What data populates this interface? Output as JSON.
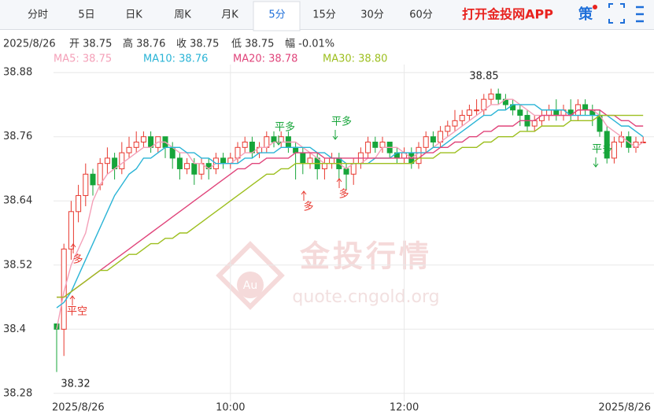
{
  "tabs": [
    "分时",
    "5日",
    "日K",
    "周K",
    "月K",
    "5分",
    "15分",
    "30分",
    "60分"
  ],
  "active_tab": 5,
  "brand": "打开金投网APP",
  "strategy_button": "策",
  "info": [
    "2025/8/26",
    "开 38.75",
    "高 38.76",
    "收 38.75",
    "低 38.75",
    "幅 -0.01%"
  ],
  "watermark": {
    "logo": "Au",
    "title": "金投行情",
    "url": "quote.cngold.org"
  },
  "chart_data": {
    "type": "candlestick",
    "categories": [
      "2025/8/26",
      null,
      null,
      null,
      null,
      null,
      null,
      null,
      null,
      null,
      null,
      null,
      null,
      null,
      null,
      null,
      null,
      null,
      null,
      null,
      null,
      null,
      null,
      null,
      "10:00",
      null,
      null,
      null,
      null,
      null,
      null,
      null,
      null,
      null,
      null,
      null,
      null,
      null,
      null,
      null,
      null,
      null,
      null,
      null,
      null,
      null,
      null,
      null,
      "12:00",
      null,
      null,
      null,
      null,
      null,
      null,
      null,
      null,
      null,
      null,
      null,
      null,
      null,
      null,
      null,
      null,
      null,
      null,
      null,
      null,
      null,
      null,
      null,
      null,
      null,
      null,
      null,
      null,
      null,
      null,
      null,
      null,
      "2025/8/26"
    ],
    "open": [
      38.41,
      38.4,
      38.55,
      38.62,
      38.65,
      38.69,
      38.67,
      38.71,
      38.72,
      38.7,
      38.73,
      38.74,
      38.75,
      38.76,
      38.74,
      38.76,
      38.74,
      38.72,
      38.7,
      38.71,
      38.69,
      38.71,
      38.7,
      38.72,
      38.71,
      38.72,
      38.74,
      38.75,
      38.73,
      38.74,
      38.76,
      38.75,
      38.76,
      38.74,
      38.73,
      38.71,
      38.72,
      38.7,
      38.71,
      38.72,
      38.7,
      38.69,
      38.71,
      38.73,
      38.75,
      38.74,
      38.75,
      38.73,
      38.72,
      38.73,
      38.71,
      38.74,
      38.76,
      38.75,
      38.77,
      38.78,
      38.79,
      38.8,
      38.81,
      38.81,
      38.83,
      38.84,
      38.83,
      38.82,
      38.81,
      38.8,
      38.78,
      38.79,
      38.8,
      38.81,
      38.8,
      38.81,
      38.8,
      38.82,
      38.81,
      38.8,
      38.77,
      38.72,
      38.75,
      38.76,
      38.74,
      38.75
    ],
    "high": [
      38.41,
      38.56,
      38.64,
      38.67,
      38.71,
      38.7,
      38.72,
      38.74,
      38.73,
      38.75,
      38.76,
      38.77,
      38.77,
      38.77,
      38.76,
      38.76,
      38.75,
      38.73,
      38.72,
      38.72,
      38.72,
      38.72,
      38.73,
      38.73,
      38.73,
      38.75,
      38.76,
      38.76,
      38.75,
      38.77,
      38.77,
      38.77,
      38.77,
      38.75,
      38.74,
      38.73,
      38.73,
      38.72,
      38.73,
      38.73,
      38.71,
      38.72,
      38.74,
      38.76,
      38.76,
      38.76,
      38.75,
      38.74,
      38.74,
      38.74,
      38.75,
      38.77,
      38.77,
      38.78,
      38.79,
      38.81,
      38.81,
      38.82,
      38.83,
      38.84,
      38.85,
      38.85,
      38.84,
      38.83,
      38.82,
      38.81,
      38.8,
      38.81,
      38.82,
      38.83,
      38.82,
      38.83,
      38.83,
      38.83,
      38.82,
      38.81,
      38.78,
      38.76,
      38.77,
      38.77,
      38.76,
      38.76
    ],
    "low": [
      38.32,
      38.35,
      38.53,
      38.6,
      38.63,
      38.65,
      38.66,
      38.69,
      38.68,
      38.69,
      38.72,
      38.73,
      38.74,
      38.73,
      38.73,
      38.72,
      38.7,
      38.68,
      38.69,
      38.67,
      38.68,
      38.68,
      38.69,
      38.7,
      38.7,
      38.71,
      38.73,
      38.72,
      38.72,
      38.73,
      38.74,
      38.74,
      38.73,
      38.68,
      38.69,
      38.7,
      38.68,
      38.68,
      38.7,
      38.68,
      38.66,
      38.67,
      38.7,
      38.72,
      38.73,
      38.73,
      38.72,
      38.71,
      38.71,
      38.7,
      38.7,
      38.73,
      38.74,
      38.74,
      38.76,
      38.77,
      38.78,
      38.79,
      38.8,
      38.8,
      38.82,
      38.82,
      38.81,
      38.8,
      38.78,
      38.77,
      38.77,
      38.78,
      38.79,
      38.79,
      38.79,
      38.79,
      38.79,
      38.8,
      38.78,
      38.76,
      38.71,
      38.71,
      38.74,
      38.73,
      38.73,
      38.75
    ],
    "close": [
      38.4,
      38.55,
      38.62,
      38.65,
      38.69,
      38.67,
      38.71,
      38.72,
      38.7,
      38.73,
      38.74,
      38.75,
      38.76,
      38.74,
      38.76,
      38.74,
      38.72,
      38.7,
      38.71,
      38.69,
      38.71,
      38.7,
      38.72,
      38.71,
      38.72,
      38.74,
      38.75,
      38.73,
      38.74,
      38.76,
      38.75,
      38.76,
      38.74,
      38.73,
      38.71,
      38.72,
      38.7,
      38.71,
      38.72,
      38.7,
      38.69,
      38.71,
      38.73,
      38.75,
      38.74,
      38.75,
      38.73,
      38.72,
      38.73,
      38.71,
      38.74,
      38.76,
      38.75,
      38.77,
      38.78,
      38.79,
      38.8,
      38.81,
      38.81,
      38.83,
      38.84,
      38.83,
      38.82,
      38.81,
      38.8,
      38.78,
      38.79,
      38.8,
      38.81,
      38.8,
      38.81,
      38.8,
      38.82,
      38.81,
      38.8,
      38.77,
      38.72,
      38.75,
      38.76,
      38.74,
      38.75,
      38.75
    ],
    "up_color": "#e8382f",
    "down_color": "#17a53a",
    "series": [
      {
        "name": "MA5: 38.75",
        "color": "#f4a0b8",
        "values": [
          38.4,
          38.47,
          38.52,
          38.55,
          38.58,
          38.64,
          38.67,
          38.69,
          38.7,
          38.71,
          38.72,
          38.73,
          38.74,
          38.74,
          38.75,
          38.75,
          38.74,
          38.73,
          38.73,
          38.71,
          38.71,
          38.7,
          38.71,
          38.71,
          38.71,
          38.72,
          38.73,
          38.73,
          38.74,
          38.74,
          38.75,
          38.75,
          38.75,
          38.75,
          38.74,
          38.73,
          38.72,
          38.71,
          38.71,
          38.71,
          38.7,
          38.71,
          38.71,
          38.72,
          38.72,
          38.74,
          38.74,
          38.74,
          38.73,
          38.72,
          38.73,
          38.73,
          38.74,
          38.75,
          38.76,
          38.77,
          38.78,
          38.79,
          38.8,
          38.81,
          38.82,
          38.82,
          38.83,
          38.83,
          38.82,
          38.81,
          38.8,
          38.8,
          38.8,
          38.8,
          38.8,
          38.8,
          38.81,
          38.81,
          38.81,
          38.8,
          38.78,
          38.77,
          38.76,
          38.75,
          38.74,
          38.75
        ]
      },
      {
        "name": "MA10: 38.76",
        "color": "#2ab4d6",
        "values": [
          38.44,
          38.45,
          38.47,
          38.5,
          38.53,
          38.56,
          38.59,
          38.62,
          38.65,
          38.67,
          38.69,
          38.7,
          38.72,
          38.72,
          38.73,
          38.74,
          38.74,
          38.74,
          38.73,
          38.73,
          38.72,
          38.72,
          38.71,
          38.71,
          38.71,
          38.71,
          38.72,
          38.72,
          38.73,
          38.73,
          38.73,
          38.74,
          38.74,
          38.74,
          38.74,
          38.74,
          38.73,
          38.73,
          38.72,
          38.72,
          38.71,
          38.71,
          38.71,
          38.71,
          38.72,
          38.72,
          38.72,
          38.73,
          38.73,
          38.73,
          38.73,
          38.73,
          38.74,
          38.74,
          38.75,
          38.76,
          38.77,
          38.78,
          38.79,
          38.8,
          38.8,
          38.81,
          38.81,
          38.82,
          38.82,
          38.82,
          38.82,
          38.81,
          38.81,
          38.81,
          38.81,
          38.8,
          38.8,
          38.8,
          38.8,
          38.8,
          38.8,
          38.79,
          38.78,
          38.78,
          38.77,
          38.76
        ]
      },
      {
        "name": "MA20: 38.78",
        "color": "#e0457b",
        "values": [
          38.46,
          38.46,
          38.47,
          38.48,
          38.49,
          38.5,
          38.51,
          38.52,
          38.53,
          38.54,
          38.55,
          38.56,
          38.57,
          38.58,
          38.59,
          38.6,
          38.61,
          38.62,
          38.63,
          38.64,
          38.65,
          38.66,
          38.67,
          38.68,
          38.69,
          38.7,
          38.7,
          38.71,
          38.71,
          38.72,
          38.72,
          38.72,
          38.72,
          38.73,
          38.73,
          38.73,
          38.73,
          38.72,
          38.72,
          38.72,
          38.72,
          38.72,
          38.72,
          38.72,
          38.72,
          38.72,
          38.72,
          38.72,
          38.72,
          38.72,
          38.72,
          38.73,
          38.73,
          38.74,
          38.74,
          38.75,
          38.75,
          38.76,
          38.76,
          38.77,
          38.77,
          38.78,
          38.78,
          38.78,
          38.79,
          38.79,
          38.79,
          38.8,
          38.8,
          38.8,
          38.8,
          38.8,
          38.81,
          38.81,
          38.81,
          38.81,
          38.8,
          38.8,
          38.79,
          38.79,
          38.78,
          38.78
        ]
      },
      {
        "name": "MA30: 38.80",
        "color": "#9dbf1f",
        "values": [
          38.46,
          38.46,
          38.47,
          38.48,
          38.49,
          38.5,
          38.51,
          38.51,
          38.52,
          38.53,
          38.54,
          38.54,
          38.55,
          38.56,
          38.56,
          38.57,
          38.57,
          38.58,
          38.58,
          38.59,
          38.6,
          38.61,
          38.62,
          38.63,
          38.64,
          38.65,
          38.66,
          38.67,
          38.68,
          38.69,
          38.69,
          38.7,
          38.7,
          38.71,
          38.71,
          38.71,
          38.71,
          38.71,
          38.71,
          38.71,
          38.71,
          38.71,
          38.71,
          38.71,
          38.71,
          38.71,
          38.71,
          38.71,
          38.71,
          38.71,
          38.72,
          38.72,
          38.72,
          38.73,
          38.73,
          38.73,
          38.74,
          38.74,
          38.74,
          38.75,
          38.75,
          38.76,
          38.76,
          38.76,
          38.77,
          38.77,
          38.77,
          38.78,
          38.78,
          38.78,
          38.78,
          38.79,
          38.79,
          38.79,
          38.79,
          38.8,
          38.8,
          38.8,
          38.8,
          38.8,
          38.8,
          38.8
        ]
      }
    ],
    "ylim": [
      38.265,
      38.895
    ],
    "yticks": [
      38.28,
      38.4,
      38.52,
      38.64,
      38.76,
      38.88
    ],
    "grid": true,
    "annotations": [
      {
        "text": "38.85"
      },
      {
        "text": "38.32"
      },
      {
        "text": "平空"
      },
      {
        "text": "多"
      },
      {
        "text": "平多"
      },
      {
        "text": "多"
      },
      {
        "text": "平多"
      },
      {
        "text": "多"
      },
      {
        "text": "平多"
      }
    ]
  }
}
